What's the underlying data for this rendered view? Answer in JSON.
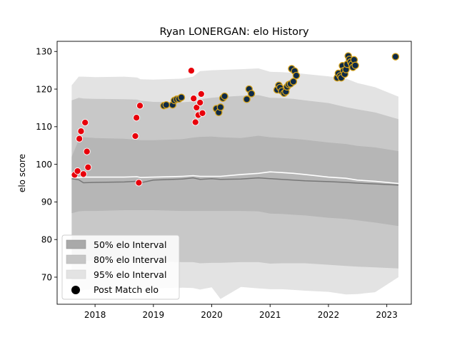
{
  "chart_data": {
    "type": "scatter",
    "title": "Ryan LONERGAN: elo History",
    "xlabel": "",
    "ylabel": "elo score",
    "xlim": [
      2017.35,
      2023.42
    ],
    "ylim": [
      62.8,
      132.7
    ],
    "x_ticks": [
      {
        "value": 2018,
        "label": "2018"
      },
      {
        "value": 2019,
        "label": "2019"
      },
      {
        "value": 2020,
        "label": "2020"
      },
      {
        "value": 2021,
        "label": "2021"
      },
      {
        "value": 2022,
        "label": "2022"
      },
      {
        "value": 2023,
        "label": "2023"
      }
    ],
    "y_ticks": [
      {
        "value": 70,
        "label": "70"
      },
      {
        "value": 80,
        "label": "80"
      },
      {
        "value": 90,
        "label": "90"
      },
      {
        "value": 100,
        "label": "100"
      },
      {
        "value": 110,
        "label": "110"
      },
      {
        "value": 120,
        "label": "120"
      },
      {
        "value": 130,
        "label": "130"
      }
    ],
    "grid": false,
    "legend_position": "bottom-left",
    "legend": [
      {
        "label": "50% elo Interval",
        "kind": "band",
        "color": "#a9a9a9"
      },
      {
        "label": "80% elo Interval",
        "kind": "band",
        "color": "#c6c6c6"
      },
      {
        "label": "95% elo Interval",
        "kind": "band",
        "color": "#e3e3e3"
      },
      {
        "label": "Post Match elo",
        "kind": "marker",
        "color": "#000000"
      }
    ],
    "colors": {
      "band95": "#e3e3e3",
      "band80": "#c8c8c8",
      "band50": "#b6b6b6",
      "mean_line": "#777777",
      "median_line": "#ffffff",
      "early_marker_fill": "#e8000b",
      "early_marker_edge": "#ffffff",
      "late_marker_fill": "#0e2a47",
      "late_marker_edge": "#d4a017"
    },
    "intervals": {
      "x": [
        2017.6,
        2017.72,
        2017.8,
        2018.0,
        2018.5,
        2018.72,
        2018.78,
        2019.0,
        2019.5,
        2019.68,
        2019.8,
        2020.0,
        2020.15,
        2020.5,
        2020.8,
        2021.0,
        2021.2,
        2021.4,
        2021.6,
        2022.0,
        2022.3,
        2022.5,
        2022.8,
        2023.2
      ],
      "p95_upper": [
        121,
        123.3,
        123.3,
        123.2,
        123.3,
        123.1,
        122.6,
        122.5,
        122.8,
        123.3,
        124.8,
        125.0,
        125.1,
        125.3,
        125.5,
        124.6,
        124.5,
        124.3,
        124.0,
        123.4,
        122.8,
        121.6,
        120.5,
        118
      ],
      "p80_upper": [
        117,
        117.7,
        117.5,
        117.4,
        117.3,
        117.2,
        116.9,
        116.6,
        116.5,
        116.7,
        117.3,
        117.7,
        117.9,
        118.2,
        118.4,
        117.7,
        117.6,
        117.4,
        117.0,
        116.3,
        115.2,
        114.6,
        113.8,
        112
      ],
      "p50_upper": [
        102,
        106.5,
        107.2,
        107.0,
        106.8,
        106.5,
        106.4,
        106.4,
        106.7,
        107.1,
        107.3,
        107.4,
        107.2,
        107.0,
        107.6,
        107.2,
        107.0,
        106.8,
        106.5,
        105.8,
        105.4,
        104.9,
        104.5,
        103.5
      ],
      "p50_lower": [
        87,
        87.5,
        87.6,
        87.6,
        87.8,
        87.8,
        87.8,
        87.8,
        87.6,
        87.6,
        87.6,
        87.6,
        87.6,
        87.6,
        87.5,
        86.9,
        86.8,
        86.6,
        86.4,
        85.8,
        85.5,
        85.1,
        84.5,
        83.6
      ],
      "p80_lower": [
        74,
        74.3,
        74.3,
        74.3,
        74.2,
        74.2,
        74.2,
        74.2,
        74.0,
        74.0,
        73.7,
        73.8,
        73.8,
        74.0,
        74.0,
        73.6,
        73.7,
        73.7,
        73.7,
        73.3,
        73.0,
        72.8,
        72.6,
        72.3
      ],
      "p95_lower": [
        66,
        66.2,
        66.6,
        66.7,
        67.0,
        67.4,
        67.4,
        67.0,
        67.2,
        67.1,
        66.7,
        67.3,
        64.2,
        67.4,
        67.0,
        66.8,
        66.8,
        66.6,
        66.4,
        66.1,
        65.4,
        65.5,
        66.0,
        70.0
      ],
      "median": [
        96.5,
        96.5,
        96.6,
        96.6,
        96.6,
        96.7,
        96.5,
        96.6,
        96.8,
        97.0,
        96.8,
        96.8,
        96.8,
        97.3,
        97.6,
        98.0,
        97.8,
        97.6,
        97.3,
        96.6,
        96.3,
        95.8,
        95.5,
        94.9
      ],
      "mean": [
        96.2,
        95.9,
        95.1,
        95.2,
        95.3,
        95.5,
        95.1,
        95.8,
        96.1,
        96.4,
        96.0,
        96.2,
        96.0,
        96.1,
        96.4,
        96.2,
        96.0,
        95.8,
        95.6,
        95.4,
        95.2,
        95.0,
        94.8,
        94.5
      ]
    },
    "series": [
      {
        "name": "Post Match elo",
        "group": "early",
        "points": [
          {
            "x": 2017.65,
            "y": 97.2
          },
          {
            "x": 2017.7,
            "y": 98.2
          },
          {
            "x": 2017.73,
            "y": 106.8
          },
          {
            "x": 2017.76,
            "y": 108.8
          },
          {
            "x": 2017.8,
            "y": 97.4
          },
          {
            "x": 2017.83,
            "y": 111.1
          },
          {
            "x": 2017.86,
            "y": 103.4
          },
          {
            "x": 2017.88,
            "y": 99.2
          },
          {
            "x": 2018.69,
            "y": 107.5
          },
          {
            "x": 2018.71,
            "y": 112.4
          },
          {
            "x": 2018.75,
            "y": 95.1
          },
          {
            "x": 2018.77,
            "y": 115.6
          },
          {
            "x": 2019.65,
            "y": 124.9
          },
          {
            "x": 2019.69,
            "y": 117.5
          },
          {
            "x": 2019.72,
            "y": 111.2
          },
          {
            "x": 2019.74,
            "y": 115.1
          },
          {
            "x": 2019.77,
            "y": 113.1
          },
          {
            "x": 2019.8,
            "y": 116.4
          },
          {
            "x": 2019.82,
            "y": 118.7
          },
          {
            "x": 2019.84,
            "y": 113.6
          }
        ]
      },
      {
        "name": "Post Match elo",
        "group": "late",
        "points": [
          {
            "x": 2019.18,
            "y": 115.6
          },
          {
            "x": 2019.22,
            "y": 115.8
          },
          {
            "x": 2019.33,
            "y": 115.8
          },
          {
            "x": 2019.36,
            "y": 117.0
          },
          {
            "x": 2019.4,
            "y": 117.3
          },
          {
            "x": 2019.44,
            "y": 117.4
          },
          {
            "x": 2019.48,
            "y": 117.8
          },
          {
            "x": 2020.08,
            "y": 114.8
          },
          {
            "x": 2020.12,
            "y": 113.8
          },
          {
            "x": 2020.15,
            "y": 115.2
          },
          {
            "x": 2020.19,
            "y": 117.6
          },
          {
            "x": 2020.22,
            "y": 118.1
          },
          {
            "x": 2020.6,
            "y": 117.3
          },
          {
            "x": 2020.64,
            "y": 120.0
          },
          {
            "x": 2020.68,
            "y": 118.8
          },
          {
            "x": 2021.12,
            "y": 119.8
          },
          {
            "x": 2021.15,
            "y": 121.0
          },
          {
            "x": 2021.17,
            "y": 120.4
          },
          {
            "x": 2021.2,
            "y": 119.5
          },
          {
            "x": 2021.24,
            "y": 118.9
          },
          {
            "x": 2021.27,
            "y": 119.3
          },
          {
            "x": 2021.29,
            "y": 120.6
          },
          {
            "x": 2021.32,
            "y": 121.2
          },
          {
            "x": 2021.35,
            "y": 121.4
          },
          {
            "x": 2021.37,
            "y": 125.4
          },
          {
            "x": 2021.4,
            "y": 122.0
          },
          {
            "x": 2021.42,
            "y": 124.8
          },
          {
            "x": 2021.45,
            "y": 123.6
          },
          {
            "x": 2022.15,
            "y": 123.0
          },
          {
            "x": 2022.17,
            "y": 124.2
          },
          {
            "x": 2022.2,
            "y": 123.5
          },
          {
            "x": 2022.22,
            "y": 123.0
          },
          {
            "x": 2022.24,
            "y": 126.2
          },
          {
            "x": 2022.26,
            "y": 124.9
          },
          {
            "x": 2022.28,
            "y": 124.0
          },
          {
            "x": 2022.3,
            "y": 125.2
          },
          {
            "x": 2022.32,
            "y": 126.6
          },
          {
            "x": 2022.34,
            "y": 128.8
          },
          {
            "x": 2022.36,
            "y": 127.9
          },
          {
            "x": 2022.38,
            "y": 127.2
          },
          {
            "x": 2022.4,
            "y": 126.6
          },
          {
            "x": 2022.42,
            "y": 125.8
          },
          {
            "x": 2022.44,
            "y": 127.8
          },
          {
            "x": 2022.46,
            "y": 126.3
          },
          {
            "x": 2023.15,
            "y": 128.6
          }
        ]
      }
    ]
  }
}
